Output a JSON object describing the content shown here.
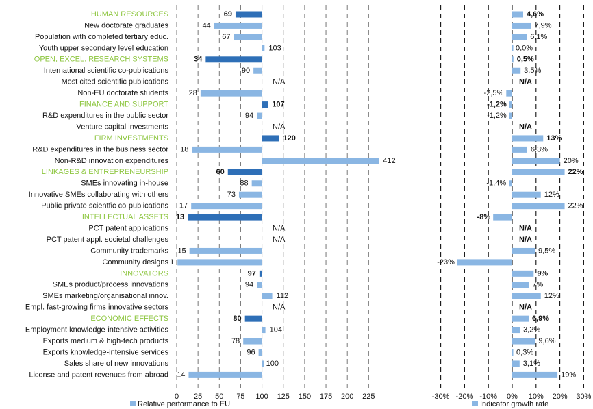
{
  "chart_data": [
    {
      "type": "bar",
      "orientation": "horizontal",
      "legend": "Relative performance to EU",
      "xlim": [
        0,
        225
      ],
      "xticks": [
        0,
        25,
        50,
        75,
        100,
        125,
        150,
        175,
        200,
        225
      ],
      "grid": "vertical-dashed",
      "colors": {
        "heading": "#2e6fb7",
        "item": "#8ab6e3",
        "heading_label": "#8dc63f"
      },
      "rows": [
        {
          "label": "HUMAN RESOURCES",
          "value": 69,
          "display": "69",
          "heading": true
        },
        {
          "label": "New doctorate graduates",
          "value": 44,
          "display": "44"
        },
        {
          "label": "Population with completed tertiary educ.",
          "value": 67,
          "display": "67"
        },
        {
          "label": "Youth upper secondary level education",
          "value": 103,
          "display": "103"
        },
        {
          "label": "OPEN, EXCEL. RESEARCH SYSTEMS",
          "value": 34,
          "display": "34",
          "heading": true
        },
        {
          "label": "International scientific co-publications",
          "value": 90,
          "display": "90"
        },
        {
          "label": "Most cited scientific publications",
          "value": null,
          "display": "N/A"
        },
        {
          "label": "Non-EU doctorate students",
          "value": 28,
          "display": "28"
        },
        {
          "label": "FINANCE AND SUPPORT",
          "value": 107,
          "display": "107",
          "heading": true
        },
        {
          "label": "R&D expenditures in the public sector",
          "value": 94,
          "display": "94"
        },
        {
          "label": "Venture capital investments",
          "value": null,
          "display": "N/A"
        },
        {
          "label": "FIRM INVESTMENTS",
          "value": 120,
          "display": "120",
          "heading": true
        },
        {
          "label": "R&D expenditures in the business sector",
          "value": 18,
          "display": "18"
        },
        {
          "label": "Non-R&D innovation expenditures",
          "value": 412,
          "display": "412"
        },
        {
          "label": "LINKAGES & ENTREPRENEURSHIP",
          "value": 60,
          "display": "60",
          "heading": true
        },
        {
          "label": "SMEs innovating in-house",
          "value": 88,
          "display": "88"
        },
        {
          "label": "Innovative SMEs collaborating with others",
          "value": 73,
          "display": "73"
        },
        {
          "label": "Public-private scientfic co-publications",
          "value": 17,
          "display": "17"
        },
        {
          "label": "INTELLECTUAL ASSETS",
          "value": 13,
          "display": "13",
          "heading": true
        },
        {
          "label": "PCT patent applications",
          "value": null,
          "display": "N/A"
        },
        {
          "label": "PCT patent appl. societal challenges",
          "value": null,
          "display": "N/A"
        },
        {
          "label": "Community trademarks",
          "value": 15,
          "display": "15"
        },
        {
          "label": "Community designs",
          "value": 1,
          "display": "1"
        },
        {
          "label": "INNOVATORS",
          "value": 97,
          "display": "97",
          "heading": true
        },
        {
          "label": "SMEs product/process innovations",
          "value": 94,
          "display": "94"
        },
        {
          "label": "SMEs marketing/organisational innov.",
          "value": 112,
          "display": "112"
        },
        {
          "label": "Empl. fast-growing firms innovative sectors",
          "value": null,
          "display": "N/A"
        },
        {
          "label": "ECONOMIC EFFECTS",
          "value": 80,
          "display": "80",
          "heading": true
        },
        {
          "label": "Employment knowledge-intensive activities",
          "value": 104,
          "display": "104"
        },
        {
          "label": "Exports medium & high-tech products",
          "value": 78,
          "display": "78"
        },
        {
          "label": "Exports knowledge-intensive services",
          "value": 96,
          "display": "96"
        },
        {
          "label": "Sales share of new innovations",
          "value": 100,
          "display": "100"
        },
        {
          "label": "License and patent revenues from abroad",
          "value": 14,
          "display": "14"
        }
      ]
    },
    {
      "type": "bar",
      "orientation": "horizontal",
      "legend": "Indicator growth rate",
      "xlim": [
        -30,
        30
      ],
      "xticks": [
        "-30%",
        "-20%",
        "-10%",
        "0%",
        "10%",
        "20%",
        "30%"
      ],
      "xtick_values": [
        -30,
        -20,
        -10,
        0,
        10,
        20,
        30
      ],
      "grid": "vertical-dashed",
      "colors": {
        "bar": "#8ab6e3"
      },
      "values": [
        {
          "value": 4.6,
          "display": "4,6%",
          "bold": true
        },
        {
          "value": 7.9,
          "display": "7,9%"
        },
        {
          "value": 6.1,
          "display": "6,1%"
        },
        {
          "value": 0.0,
          "display": "0,0%"
        },
        {
          "value": 0.5,
          "display": "0,5%",
          "bold": true
        },
        {
          "value": 3.5,
          "display": "3,5%"
        },
        {
          "value": null,
          "display": "N/A"
        },
        {
          "value": -2.5,
          "display": "-2,5%"
        },
        {
          "value": -1.2,
          "display": "-1,2%",
          "bold": true
        },
        {
          "value": -1.2,
          "display": "-1,2%"
        },
        {
          "value": null,
          "display": "N/A"
        },
        {
          "value": 13,
          "display": "13%",
          "bold": true
        },
        {
          "value": 6.3,
          "display": "6,3%"
        },
        {
          "value": 20,
          "display": "20%"
        },
        {
          "value": 22,
          "display": "22%",
          "bold": true
        },
        {
          "value": -1.4,
          "display": "-1,4%"
        },
        {
          "value": 12,
          "display": "12%"
        },
        {
          "value": 22,
          "display": "22%"
        },
        {
          "value": -8,
          "display": "-8%",
          "bold": true
        },
        {
          "value": null,
          "display": "N/A"
        },
        {
          "value": null,
          "display": "N/A"
        },
        {
          "value": 9.5,
          "display": "9,5%"
        },
        {
          "value": -23,
          "display": "-23%"
        },
        {
          "value": 9,
          "display": "9%",
          "bold": true
        },
        {
          "value": 7,
          "display": "7%"
        },
        {
          "value": 12,
          "display": "12%"
        },
        {
          "value": null,
          "display": "N/A"
        },
        {
          "value": 6.9,
          "display": "6,9%",
          "bold": true
        },
        {
          "value": 3.2,
          "display": "3,2%"
        },
        {
          "value": 9.6,
          "display": "9,6%"
        },
        {
          "value": 0.3,
          "display": "0,3%"
        },
        {
          "value": 3.1,
          "display": "3,1%"
        },
        {
          "value": 19,
          "display": "19%"
        }
      ]
    }
  ]
}
